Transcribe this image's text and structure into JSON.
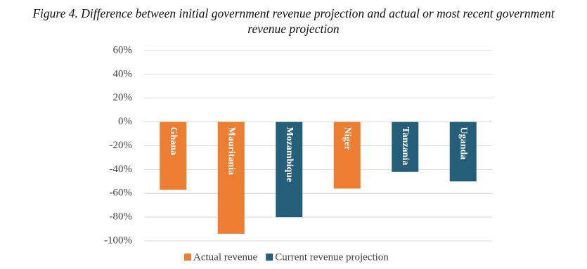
{
  "chart_data": {
    "type": "bar",
    "title": "Figure 4. Difference between initial government revenue projection and actual or most recent government revenue projection",
    "categories": [
      "Ghana",
      "Mauritania",
      "Mozambique",
      "Niger",
      "Tanzania",
      "Uganda"
    ],
    "series": [
      {
        "name": "Actual revenue",
        "color": "#ed7d31",
        "values": [
          -57,
          -94,
          null,
          -56,
          null,
          null
        ]
      },
      {
        "name": "Current revenue projection",
        "color": "#255e78",
        "values": [
          null,
          null,
          -80,
          null,
          -42,
          -50
        ]
      }
    ],
    "ylim": [
      -100,
      60
    ],
    "yticks": [
      {
        "value": -100,
        "label": "-100%"
      },
      {
        "value": -80,
        "label": "-80%"
      },
      {
        "value": -60,
        "label": "-60%"
      },
      {
        "value": -40,
        "label": "-40%"
      },
      {
        "value": -20,
        "label": "-20%"
      },
      {
        "value": 0,
        "label": "0%"
      },
      {
        "value": 20,
        "label": "20%"
      },
      {
        "value": 40,
        "label": "40%"
      },
      {
        "value": 60,
        "label": "60%"
      }
    ],
    "grid": true
  }
}
